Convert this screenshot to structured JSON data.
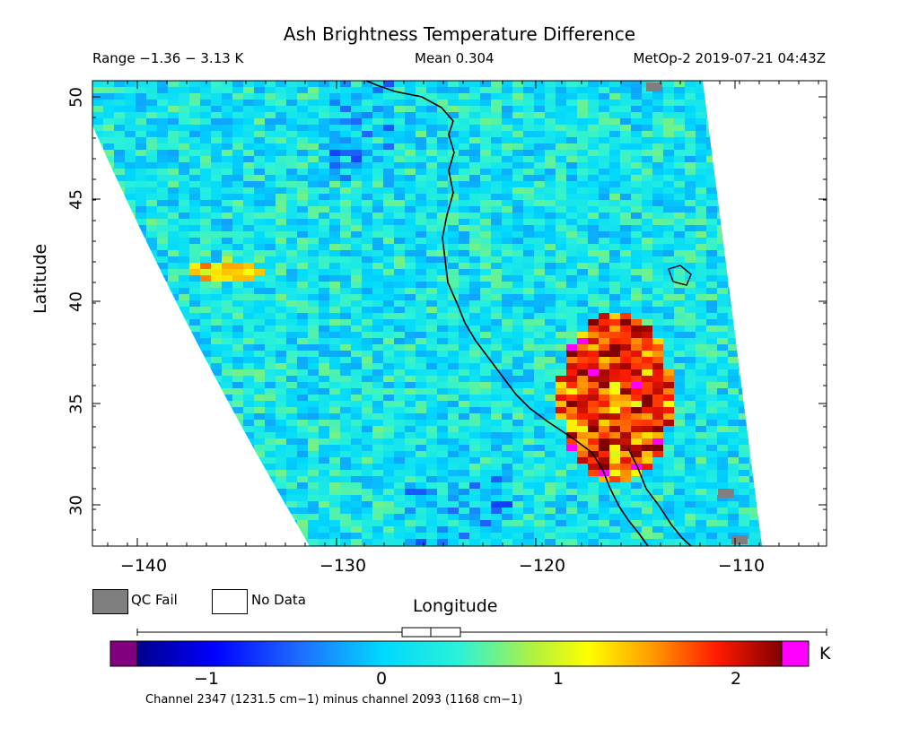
{
  "title": "Ash Brightness Temperature Difference",
  "range_text": "Range −1.36 − 3.13 K",
  "mean_text": "Mean 0.304",
  "satellite_text": "MetOp-2 2019-07-21 04:43Z",
  "axes": {
    "xlabel": "Longitude",
    "ylabel": "Latitude",
    "xlim": [
      -142.5,
      -105.5
    ],
    "ylim": [
      27.8,
      50.7
    ],
    "xticks": [
      "−140",
      "−130",
      "−120",
      "−110"
    ],
    "yticks": [
      "30",
      "35",
      "40",
      "45",
      "50"
    ]
  },
  "legend": {
    "qc_fail": "QC Fail",
    "no_data": "No Data",
    "qc_color": "#7f7f7f",
    "no_data_color": "#ffffff"
  },
  "colorbar": {
    "unit": "K",
    "min": -1.36,
    "max": 3.13,
    "ticks": [
      "−1",
      "0",
      "1",
      "2"
    ],
    "under_color": "#800080",
    "over_color": "#ff00ff",
    "mean_box_range": [
      0.1,
      0.45
    ],
    "mean_value": 0.304
  },
  "channel_text": "Channel 2347 (1231.5 cm−1) minus channel 2093 (1168 cm−1)"
}
